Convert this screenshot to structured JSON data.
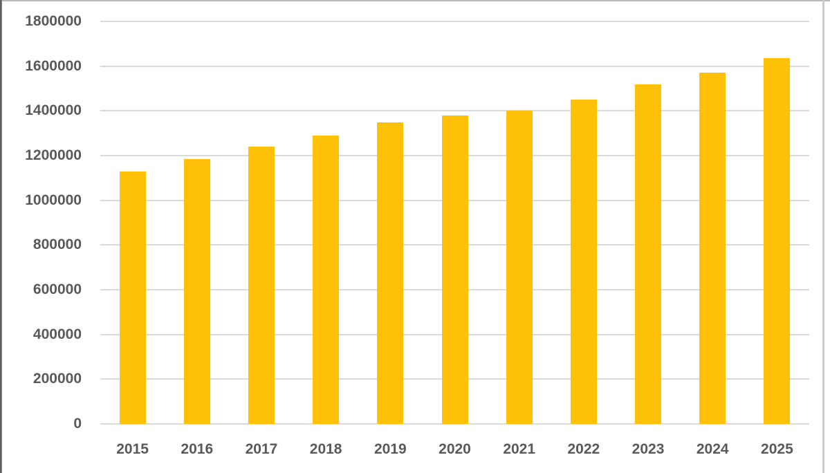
{
  "chart_data": {
    "type": "bar",
    "title": "",
    "xlabel": "",
    "ylabel": "",
    "categories": [
      "2015",
      "2016",
      "2017",
      "2018",
      "2019",
      "2020",
      "2021",
      "2022",
      "2023",
      "2024",
      "2025"
    ],
    "values": [
      1130000,
      1185000,
      1240000,
      1290000,
      1350000,
      1380000,
      1400000,
      1450000,
      1520000,
      1570000,
      1635000
    ],
    "ylim": [
      0,
      1800000
    ],
    "ytick_interval": 200000,
    "ytick_labels": [
      "0",
      "200000",
      "400000",
      "600000",
      "800000",
      "1000000",
      "1200000",
      "1400000",
      "1600000",
      "1800000"
    ],
    "grid": true,
    "legend": false,
    "bar_color": "#FFC008",
    "gridline_color": "#D9D9D9",
    "axis_label_color": "#595959",
    "background_color": "#FFFFFF"
  }
}
